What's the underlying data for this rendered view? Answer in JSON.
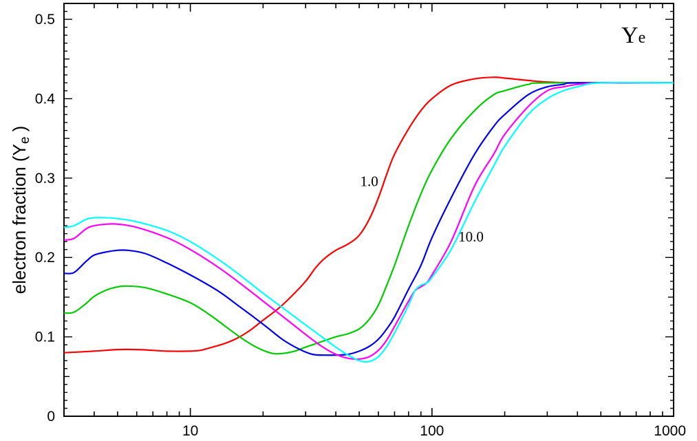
{
  "chart_data": {
    "type": "line",
    "title": "",
    "corner_label": {
      "main": "Y",
      "sub": "e"
    },
    "ylabel": {
      "main": "electron fraction (Y",
      "sub": "e",
      "end": " )"
    },
    "xlabel": "",
    "xscale": "log",
    "xlim": [
      3,
      1000
    ],
    "ylim": [
      0,
      0.52
    ],
    "xticks": [
      {
        "value": 10,
        "label": "10"
      },
      {
        "value": 100,
        "label": "100"
      },
      {
        "value": 1000,
        "label": "1000"
      }
    ],
    "yticks": [
      {
        "value": 0,
        "label": "0"
      },
      {
        "value": 0.1,
        "label": "0.1"
      },
      {
        "value": 0.2,
        "label": "0.2"
      },
      {
        "value": 0.3,
        "label": "0.3"
      },
      {
        "value": 0.4,
        "label": "0.4"
      },
      {
        "value": 0.5,
        "label": "0.5"
      }
    ],
    "grid": false,
    "annotations": [
      {
        "text": "1.0",
        "x": 55,
        "y": 0.29
      },
      {
        "text": "10.0",
        "x": 145,
        "y": 0.22
      }
    ],
    "series": [
      {
        "color": "#ff0000",
        "points": [
          [
            3,
            0.08
          ],
          [
            4,
            0.082
          ],
          [
            5,
            0.084
          ],
          [
            6,
            0.084
          ],
          [
            7,
            0.083
          ],
          [
            8,
            0.082
          ],
          [
            10,
            0.082
          ],
          [
            11,
            0.083
          ],
          [
            12,
            0.086
          ],
          [
            14,
            0.092
          ],
          [
            16,
            0.1
          ],
          [
            18,
            0.11
          ],
          [
            20,
            0.121
          ],
          [
            23,
            0.135
          ],
          [
            26,
            0.15
          ],
          [
            30,
            0.17
          ],
          [
            33,
            0.187
          ],
          [
            36,
            0.199
          ],
          [
            40,
            0.209
          ],
          [
            45,
            0.217
          ],
          [
            50,
            0.228
          ],
          [
            55,
            0.248
          ],
          [
            60,
            0.275
          ],
          [
            65,
            0.305
          ],
          [
            70,
            0.33
          ],
          [
            80,
            0.362
          ],
          [
            90,
            0.385
          ],
          [
            100,
            0.4
          ],
          [
            120,
            0.417
          ],
          [
            150,
            0.425
          ],
          [
            180,
            0.427
          ],
          [
            200,
            0.426
          ],
          [
            250,
            0.423
          ],
          [
            300,
            0.421
          ],
          [
            400,
            0.42
          ],
          [
            1000,
            0.42
          ]
        ]
      },
      {
        "color": "#00cc00",
        "points": [
          [
            3,
            0.13
          ],
          [
            3.3,
            0.131
          ],
          [
            3.7,
            0.142
          ],
          [
            4,
            0.151
          ],
          [
            4.5,
            0.159
          ],
          [
            5,
            0.163
          ],
          [
            5.5,
            0.164
          ],
          [
            6.5,
            0.162
          ],
          [
            8,
            0.154
          ],
          [
            10,
            0.143
          ],
          [
            12,
            0.128
          ],
          [
            14,
            0.113
          ],
          [
            16,
            0.1
          ],
          [
            18,
            0.09
          ],
          [
            20,
            0.083
          ],
          [
            22,
            0.079
          ],
          [
            24,
            0.079
          ],
          [
            27,
            0.082
          ],
          [
            30,
            0.087
          ],
          [
            35,
            0.094
          ],
          [
            40,
            0.1
          ],
          [
            45,
            0.104
          ],
          [
            50,
            0.11
          ],
          [
            55,
            0.122
          ],
          [
            60,
            0.14
          ],
          [
            65,
            0.165
          ],
          [
            70,
            0.19
          ],
          [
            80,
            0.24
          ],
          [
            90,
            0.28
          ],
          [
            100,
            0.31
          ],
          [
            120,
            0.35
          ],
          [
            150,
            0.385
          ],
          [
            180,
            0.405
          ],
          [
            200,
            0.41
          ],
          [
            250,
            0.418
          ],
          [
            300,
            0.42
          ],
          [
            1000,
            0.42
          ]
        ]
      },
      {
        "color": "#0000ee",
        "points": [
          [
            3,
            0.18
          ],
          [
            3.3,
            0.181
          ],
          [
            3.7,
            0.195
          ],
          [
            4,
            0.203
          ],
          [
            4.5,
            0.207
          ],
          [
            5,
            0.209
          ],
          [
            5.5,
            0.209
          ],
          [
            6.5,
            0.205
          ],
          [
            8,
            0.193
          ],
          [
            10,
            0.178
          ],
          [
            13,
            0.158
          ],
          [
            16,
            0.138
          ],
          [
            20,
            0.116
          ],
          [
            24,
            0.097
          ],
          [
            28,
            0.085
          ],
          [
            32,
            0.078
          ],
          [
            36,
            0.077
          ],
          [
            40,
            0.077
          ],
          [
            45,
            0.078
          ],
          [
            50,
            0.082
          ],
          [
            55,
            0.088
          ],
          [
            60,
            0.097
          ],
          [
            65,
            0.11
          ],
          [
            70,
            0.125
          ],
          [
            80,
            0.16
          ],
          [
            90,
            0.19
          ],
          [
            100,
            0.225
          ],
          [
            120,
            0.275
          ],
          [
            150,
            0.33
          ],
          [
            180,
            0.365
          ],
          [
            200,
            0.38
          ],
          [
            250,
            0.405
          ],
          [
            300,
            0.415
          ],
          [
            350,
            0.418
          ],
          [
            400,
            0.42
          ],
          [
            1000,
            0.42
          ]
        ]
      },
      {
        "color": "#ff00ff",
        "points": [
          [
            3,
            0.222
          ],
          [
            3.3,
            0.224
          ],
          [
            3.7,
            0.236
          ],
          [
            4,
            0.24
          ],
          [
            4.5,
            0.242
          ],
          [
            5,
            0.242
          ],
          [
            6,
            0.238
          ],
          [
            8,
            0.225
          ],
          [
            10,
            0.21
          ],
          [
            13,
            0.188
          ],
          [
            16,
            0.168
          ],
          [
            20,
            0.145
          ],
          [
            25,
            0.122
          ],
          [
            30,
            0.103
          ],
          [
            35,
            0.088
          ],
          [
            40,
            0.078
          ],
          [
            45,
            0.073
          ],
          [
            50,
            0.072
          ],
          [
            55,
            0.075
          ],
          [
            60,
            0.083
          ],
          [
            65,
            0.096
          ],
          [
            70,
            0.113
          ],
          [
            80,
            0.145
          ],
          [
            85,
            0.158
          ],
          [
            90,
            0.163
          ],
          [
            95,
            0.168
          ],
          [
            100,
            0.178
          ],
          [
            120,
            0.22
          ],
          [
            150,
            0.29
          ],
          [
            180,
            0.33
          ],
          [
            200,
            0.355
          ],
          [
            250,
            0.39
          ],
          [
            300,
            0.41
          ],
          [
            350,
            0.415
          ],
          [
            400,
            0.418
          ],
          [
            500,
            0.42
          ],
          [
            1000,
            0.42
          ]
        ]
      },
      {
        "color": "#00ffff",
        "points": [
          [
            3,
            0.238
          ],
          [
            3.3,
            0.24
          ],
          [
            3.7,
            0.248
          ],
          [
            4,
            0.25
          ],
          [
            4.5,
            0.25
          ],
          [
            5,
            0.249
          ],
          [
            6,
            0.245
          ],
          [
            8,
            0.234
          ],
          [
            10,
            0.22
          ],
          [
            13,
            0.198
          ],
          [
            16,
            0.178
          ],
          [
            20,
            0.155
          ],
          [
            25,
            0.133
          ],
          [
            30,
            0.115
          ],
          [
            35,
            0.1
          ],
          [
            40,
            0.087
          ],
          [
            45,
            0.077
          ],
          [
            50,
            0.07
          ],
          [
            55,
            0.069
          ],
          [
            60,
            0.075
          ],
          [
            65,
            0.088
          ],
          [
            70,
            0.105
          ],
          [
            80,
            0.14
          ],
          [
            85,
            0.158
          ],
          [
            90,
            0.165
          ],
          [
            95,
            0.168
          ],
          [
            100,
            0.175
          ],
          [
            120,
            0.21
          ],
          [
            150,
            0.27
          ],
          [
            180,
            0.315
          ],
          [
            200,
            0.34
          ],
          [
            250,
            0.38
          ],
          [
            300,
            0.4
          ],
          [
            350,
            0.41
          ],
          [
            400,
            0.415
          ],
          [
            500,
            0.42
          ],
          [
            1000,
            0.42
          ]
        ]
      }
    ]
  }
}
